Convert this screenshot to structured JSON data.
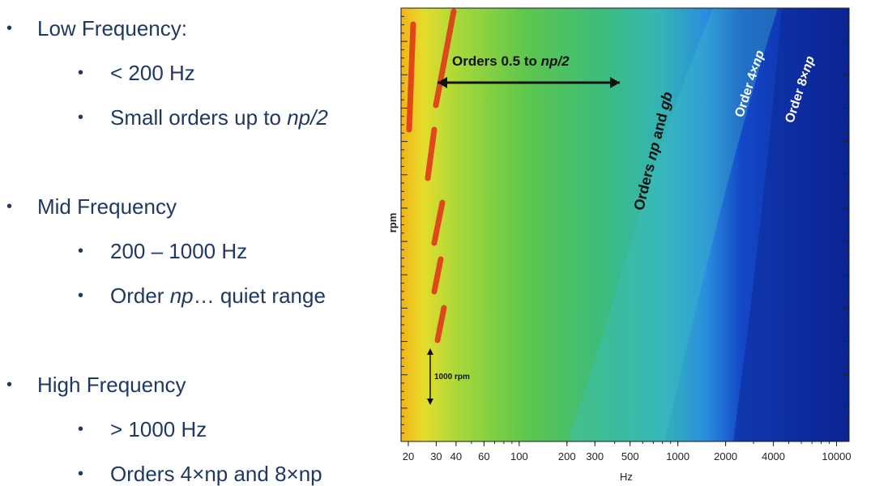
{
  "bullets": [
    {
      "text": "Low Frequency:",
      "items": [
        [
          {
            "text": "< 200 Hz"
          }
        ],
        [
          {
            "text": "Small orders up to "
          },
          {
            "text": "np/2",
            "italic": true
          }
        ]
      ]
    },
    {
      "text": "Mid Frequency",
      "items": [
        [
          {
            "text": "200 – 1000 Hz"
          }
        ],
        [
          {
            "text": "Order "
          },
          {
            "text": "np",
            "italic": true
          },
          {
            "text": "… quiet range"
          }
        ]
      ]
    },
    {
      "text": "High Frequency",
      "items": [
        [
          {
            "text": "> 1000 Hz"
          }
        ],
        [
          {
            "text": "Orders 4×np and 8×np"
          }
        ]
      ]
    }
  ],
  "spectrogram": {
    "y_label": "rpm",
    "x_label": "Hz",
    "xscale": "log",
    "xlim": [
      18,
      12000
    ],
    "xticks": [
      20,
      30,
      40,
      60,
      100,
      200,
      300,
      500,
      1000,
      2000,
      4000,
      10000
    ],
    "annotations": {
      "low_orders": [
        {
          "text": "Orders 0.5 to "
        },
        {
          "text": "np/2",
          "italic": true
        }
      ],
      "mid_orders": [
        {
          "text": "Orders "
        },
        {
          "text": "np",
          "italic": true
        },
        {
          "text": " and "
        },
        {
          "text": "gb",
          "italic": true
        }
      ],
      "order_4np": [
        {
          "text": "Order 4×"
        },
        {
          "text": "np",
          "italic": true
        }
      ],
      "order_8np": [
        {
          "text": "Order 8×"
        },
        {
          "text": "np",
          "italic": true
        }
      ],
      "rpm_span": "1000 rpm"
    }
  }
}
